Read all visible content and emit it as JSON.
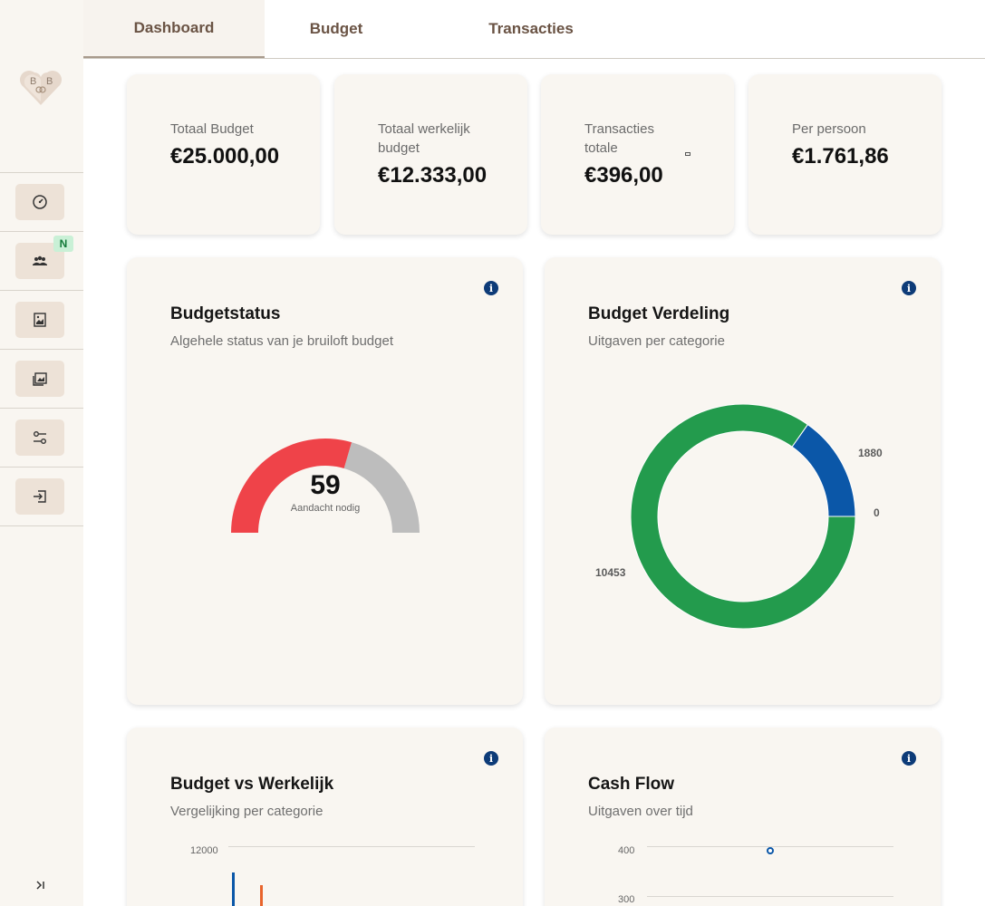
{
  "tabs": [
    "Dashboard",
    "Budget",
    "Transacties"
  ],
  "logo": {
    "left_letter": "B",
    "right_letter": "B"
  },
  "sidebar": {
    "items": [
      {
        "icon": "dashboard-gauge-icon"
      },
      {
        "icon": "users-icon",
        "badge": "N"
      },
      {
        "icon": "image-icon"
      },
      {
        "icon": "gallery-icon"
      },
      {
        "icon": "settings-sliders-icon"
      },
      {
        "icon": "logout-icon"
      }
    ],
    "collapse_label": ">|"
  },
  "stats": [
    {
      "label_lines": [
        "Totaal Budget"
      ],
      "value": "€25.000,00"
    },
    {
      "label_lines": [
        "Totaal werkelijk",
        "budget"
      ],
      "value": "€12.333,00"
    },
    {
      "label_lines": [
        "Transacties",
        "totale"
      ],
      "value": "€396,00"
    },
    {
      "label_lines": [
        "Per persoon"
      ],
      "value": "€1.761,86"
    }
  ],
  "budgetstatus": {
    "title": "Budgetstatus",
    "subtitle": "Algehele status van je bruiloft budget",
    "score": "59",
    "score_label": "Aandacht nodig",
    "score_fraction": 0.59,
    "colors": {
      "filled": "#ef4349",
      "remaining": "#bdbdbd"
    }
  },
  "verdeling": {
    "title": "Budget Verdeling",
    "subtitle": "Uitgaven per categorie"
  },
  "vs": {
    "title": "Budget vs Werkelijk",
    "subtitle": "Vergelijking per categorie"
  },
  "cashflow": {
    "title": "Cash Flow",
    "subtitle": "Uitgaven over tijd"
  },
  "info_glyph": "i",
  "chart_data": [
    {
      "type": "pie",
      "title": "Budget Verdeling",
      "categories": [
        "",
        "",
        ""
      ],
      "values": [
        1880,
        0,
        10453
      ],
      "colors": [
        "#0b57a8",
        "#2563eb",
        "#239b4d"
      ],
      "data_labels": [
        "1880",
        "0",
        "10453"
      ]
    },
    {
      "type": "bar",
      "title": "Budget vs Werkelijk",
      "y_ticks": [
        "12000"
      ],
      "series_colors": [
        "#0b57a8",
        "#e8642c"
      ]
    },
    {
      "type": "line",
      "title": "Cash Flow",
      "y_ticks": [
        "400",
        "300"
      ],
      "point_color": "#0b57a8"
    }
  ]
}
